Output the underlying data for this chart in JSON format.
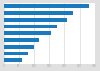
{
  "values": [
    280,
    230,
    210,
    175,
    155,
    115,
    100,
    80,
    62
  ],
  "bar_color": "#1a7abf",
  "background_color": "#ffffff",
  "frame_color": "#e0e0e0",
  "grid_color": "#d0d0d0",
  "tick_color": "#aaaaaa",
  "xlim_max": 300
}
